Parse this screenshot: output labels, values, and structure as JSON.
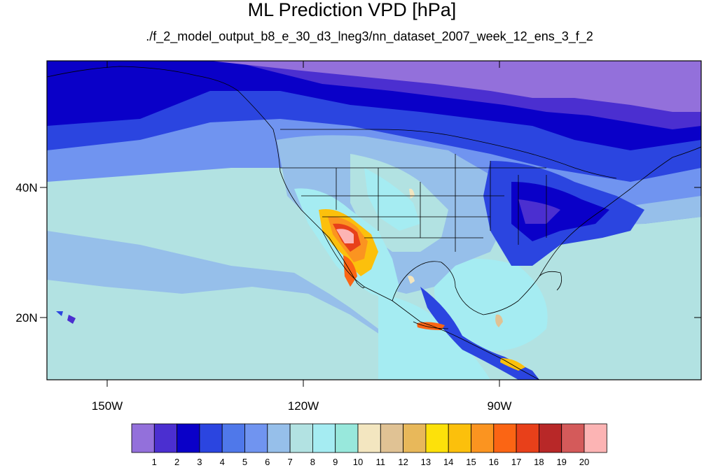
{
  "title": "ML Prediction VPD [hPa]",
  "subtitle": "./f_2_model_output_b8_e_30_d3_lneg3/nn_dataset_2007_week_12_ens_3_f_2",
  "axes": {
    "lat_labels": [
      "40N",
      "20N"
    ],
    "lon_labels": [
      "150W",
      "120W",
      "90W"
    ]
  },
  "colorbar": {
    "colors": [
      "#9370db",
      "#4b2fd0",
      "#0a00c8",
      "#2b45e0",
      "#4f78ea",
      "#7094f0",
      "#96bfea",
      "#b2e2e2",
      "#a5ecf2",
      "#98e8dc",
      "#f3e6c0",
      "#e0c294",
      "#e8b85a",
      "#fde10a",
      "#fcc00c",
      "#fb9420",
      "#fb6514",
      "#e8401a",
      "#b82828",
      "#d45a5a",
      "#fcb4b4"
    ],
    "tick_labels": [
      "1",
      "2",
      "3",
      "4",
      "5",
      "6",
      "7",
      "8",
      "9",
      "10",
      "11",
      "12",
      "13",
      "14",
      "15",
      "16",
      "17",
      "18",
      "19",
      "20"
    ]
  }
}
